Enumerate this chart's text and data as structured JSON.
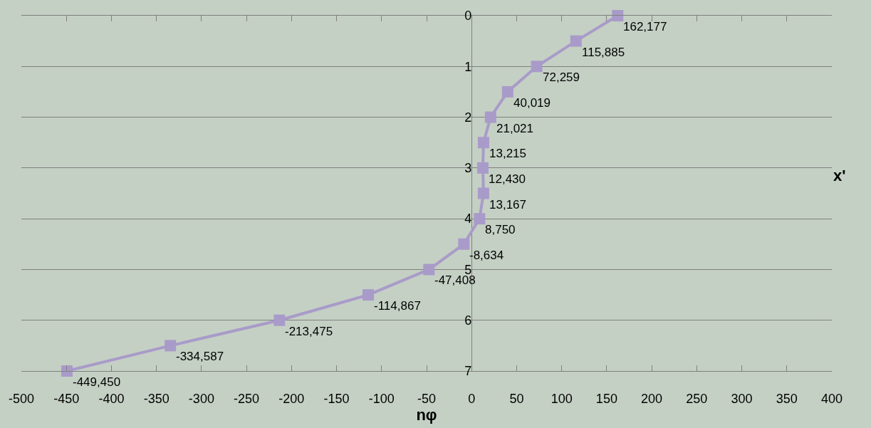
{
  "chart_data": {
    "type": "line",
    "xlabel": "nφ",
    "ylabel": "x'",
    "x": [
      162.177,
      115.885,
      72.259,
      40.019,
      21.021,
      13.215,
      12.43,
      13.167,
      8.75,
      -8.634,
      -47.408,
      -114.867,
      -213.475,
      -334.587,
      -449.45
    ],
    "series": [
      {
        "color": "#a99bc9",
        "values": [
          0,
          0.5,
          1,
          1.5,
          2,
          2.5,
          3,
          3.5,
          4,
          4.5,
          5,
          5.5,
          6,
          6.5,
          7
        ]
      }
    ],
    "annotations": [
      {
        "text": "162,177",
        "x": 162.177,
        "y": 0
      },
      {
        "text": "115,885",
        "x": 115.885,
        "y": 0.5
      },
      {
        "text": "72,259",
        "x": 72.259,
        "y": 1
      },
      {
        "text": "40,019",
        "x": 40.019,
        "y": 1.5
      },
      {
        "text": "21,021",
        "x": 21.021,
        "y": 2
      },
      {
        "text": "13,215",
        "x": 13.215,
        "y": 2.5
      },
      {
        "text": "12,430",
        "x": 12.43,
        "y": 3
      },
      {
        "text": "13,167",
        "x": 13.167,
        "y": 3.5
      },
      {
        "text": "8,750",
        "x": 8.75,
        "y": 4
      },
      {
        "text": "-8,634",
        "x": -8.634,
        "y": 4.5
      },
      {
        "text": "-47,408",
        "x": -47.408,
        "y": 5
      },
      {
        "text": "-114,867",
        "x": -114.867,
        "y": 5.5
      },
      {
        "text": "-213,475",
        "x": -213.475,
        "y": 6
      },
      {
        "text": "-334,587",
        "x": -334.587,
        "y": 6.5
      },
      {
        "text": "-449,450",
        "x": -449.45,
        "y": 7
      }
    ],
    "xlim": [
      -500,
      400
    ],
    "xticks": [
      -500,
      -450,
      -400,
      -350,
      -300,
      -250,
      -200,
      -150,
      -100,
      -50,
      0,
      50,
      100,
      150,
      200,
      250,
      300,
      350,
      400
    ],
    "ylim": [
      7,
      0
    ],
    "yticks": [
      0,
      1,
      2,
      3,
      4,
      5,
      6,
      7
    ],
    "grid": "y",
    "legend": false,
    "marker": "square",
    "line_style": "solid"
  }
}
